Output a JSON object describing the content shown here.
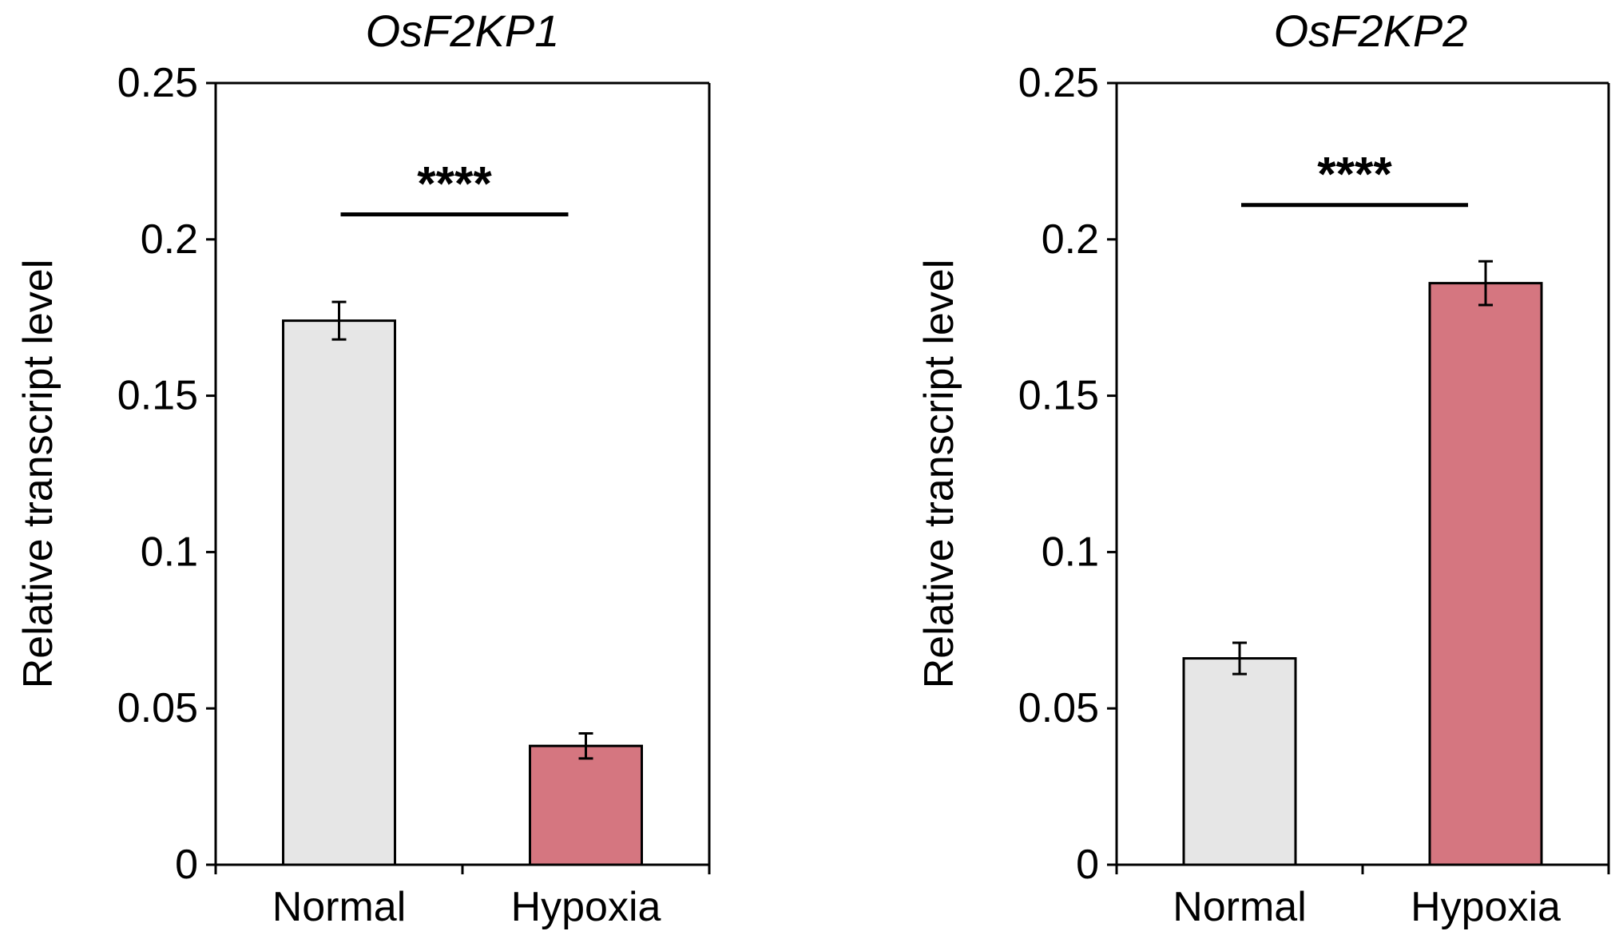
{
  "chart_data": [
    {
      "type": "bar",
      "title": "OsF2KP1",
      "ylabel": "Relative transcript level",
      "xlabel": "",
      "categories": [
        "Normal",
        "Hypoxia"
      ],
      "values": [
        0.174,
        0.038
      ],
      "errors": [
        0.006,
        0.004
      ],
      "colors": [
        "#e6e6e6",
        "#d57680"
      ],
      "ylim": [
        0,
        0.25
      ],
      "yticks": [
        0,
        0.05,
        0.1,
        0.15,
        0.2,
        0.25
      ],
      "ytick_labels": [
        "0",
        "0.05",
        "0.1",
        "0.15",
        "0.2",
        "0.25"
      ],
      "significance": "****",
      "significance_y": 0.208
    },
    {
      "type": "bar",
      "title": "OsF2KP2",
      "ylabel": "Relative transcript level",
      "xlabel": "",
      "categories": [
        "Normal",
        "Hypoxia"
      ],
      "values": [
        0.066,
        0.186
      ],
      "errors": [
        0.005,
        0.007
      ],
      "colors": [
        "#e6e6e6",
        "#d57680"
      ],
      "ylim": [
        0,
        0.25
      ],
      "yticks": [
        0,
        0.05,
        0.1,
        0.15,
        0.2,
        0.25
      ],
      "ytick_labels": [
        "0",
        "0.05",
        "0.1",
        "0.15",
        "0.2",
        "0.25"
      ],
      "significance": "****",
      "significance_y": 0.211
    }
  ]
}
